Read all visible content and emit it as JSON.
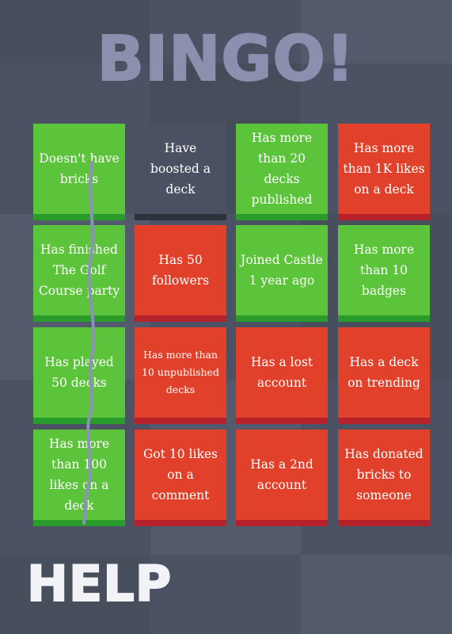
{
  "header": {
    "title": "BINGO!"
  },
  "grid": {
    "cells": [
      [
        "Doesn't have bricks",
        "Have boosted a deck",
        "Has more than 20 decks published",
        "Has more than 1K likes on a deck"
      ],
      [
        "Has finished The Golf Course party",
        "Has 50 followers",
        "Joined Castle 1 year ago",
        "Has more than 10 badges"
      ],
      [
        "Has played 50 decks",
        "Has more than 10 unpublished decks",
        "Has a lost account",
        "Has a deck on trending"
      ],
      [
        "Has more than 100 likes on a deck",
        "Got 10 likes on a comment",
        "Has a 2nd account",
        "Has donated bricks to someone"
      ]
    ]
  },
  "footer": {
    "button": "HELP"
  }
}
